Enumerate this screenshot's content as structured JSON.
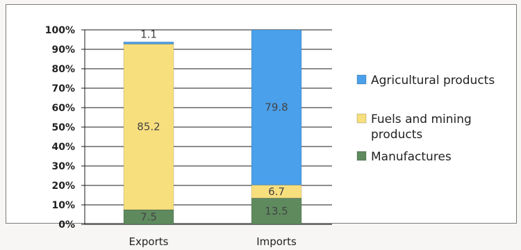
{
  "chart_data": {
    "type": "bar",
    "stacked": true,
    "categories": [
      "Exports",
      "Imports"
    ],
    "series": [
      {
        "name": "Agricultural products",
        "values": [
          7.5,
          13.5
        ],
        "color": "#5e8a5e"
      },
      {
        "name": "Fuels and mining products",
        "values": [
          85.2,
          6.7
        ],
        "color": "#f8df7e"
      },
      {
        "name": "Manufactures",
        "values": [
          1.1,
          79.8
        ],
        "color": "#4aa0ea"
      }
    ],
    "data_labels": [
      [
        "7.5",
        "13.5"
      ],
      [
        "85.2",
        "6.7"
      ],
      [
        "1.1",
        "79.8"
      ]
    ],
    "ylim": [
      0,
      100
    ],
    "yticks": [
      "0%",
      "10%",
      "20%",
      "30%",
      "40%",
      "50%",
      "60%",
      "70%",
      "80%",
      "90%",
      "100%"
    ],
    "grid": true,
    "legend_position": "right",
    "legend_order": [
      2,
      1,
      0
    ],
    "legend_lines": [
      [
        "Manufactures"
      ],
      [
        "Fuels and mining",
        "products"
      ],
      [
        "Agricultural products"
      ]
    ]
  }
}
